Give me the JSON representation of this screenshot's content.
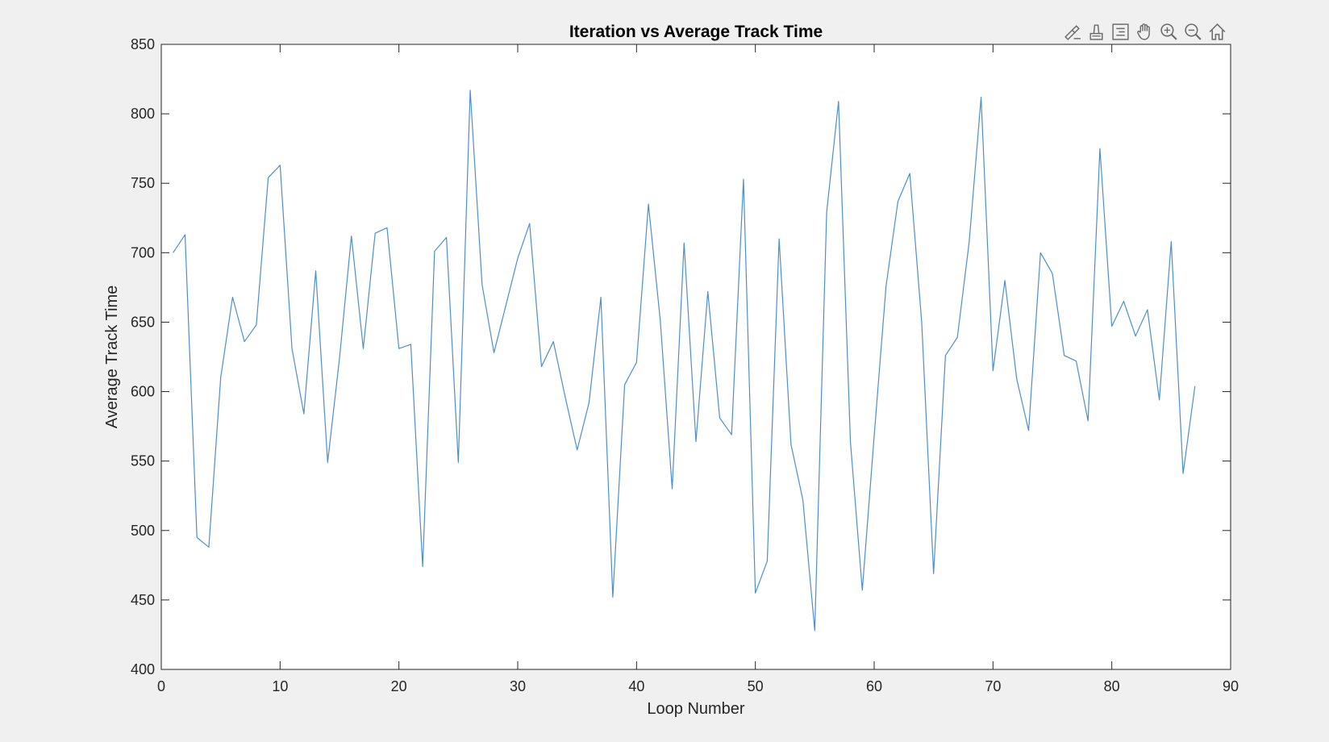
{
  "toolbar": {
    "icons": [
      "brush-edit-icon",
      "data-tips-icon",
      "legend-icon",
      "pan-hand-icon",
      "zoom-in-icon",
      "zoom-out-icon",
      "home-icon"
    ]
  },
  "colors": {
    "background": "#f0f0f0",
    "axes_background": "#ffffff",
    "line": "#4a8fd0",
    "axis": "#262626"
  },
  "chart_data": {
    "type": "line",
    "title": "Iteration vs Average Track Time",
    "xlabel": "Loop Number",
    "ylabel": "Average Track Time",
    "xlim": [
      0,
      90
    ],
    "ylim": [
      400,
      850
    ],
    "xticks": [
      0,
      10,
      20,
      30,
      40,
      50,
      60,
      70,
      80,
      90
    ],
    "yticks": [
      400,
      450,
      500,
      550,
      600,
      650,
      700,
      750,
      800,
      850
    ],
    "grid": false,
    "series": [
      {
        "x": [
          1,
          2,
          3,
          4,
          5,
          6,
          7,
          8,
          9,
          10,
          11,
          12,
          13,
          14,
          15,
          16,
          17,
          18,
          19,
          20,
          21,
          22,
          23,
          24,
          25,
          26,
          27,
          28,
          29,
          30,
          31,
          32,
          33,
          34,
          35,
          36,
          37,
          38,
          39,
          40,
          41,
          42,
          43,
          44,
          45,
          46,
          47,
          48,
          49,
          50,
          51,
          52,
          53,
          54,
          55,
          56,
          57,
          58,
          59,
          60,
          61,
          62,
          63,
          64,
          65,
          66,
          67,
          68,
          69,
          70,
          71,
          72,
          73,
          74,
          75,
          76,
          77,
          78,
          79,
          80,
          81,
          82,
          83,
          84,
          85,
          86,
          87
        ],
        "y": [
          700,
          713,
          495,
          488,
          610,
          668,
          636,
          648,
          754,
          763,
          631,
          584,
          687,
          549,
          624,
          712,
          631,
          714,
          718,
          631,
          634,
          474,
          701,
          711,
          549,
          817,
          677,
          628,
          662,
          696,
          721,
          618,
          636,
          596,
          558,
          592,
          668,
          452,
          605,
          621,
          735,
          651,
          530,
          707,
          564,
          672,
          581,
          569,
          753,
          455,
          478,
          710,
          562,
          522,
          428,
          729,
          809,
          564,
          457,
          568,
          676,
          737,
          757,
          650,
          469,
          626,
          639,
          708,
          812,
          615,
          680,
          609,
          572,
          700,
          685,
          626,
          622,
          579,
          775,
          647,
          665,
          640,
          659,
          594,
          708,
          541,
          604
        ]
      }
    ]
  }
}
